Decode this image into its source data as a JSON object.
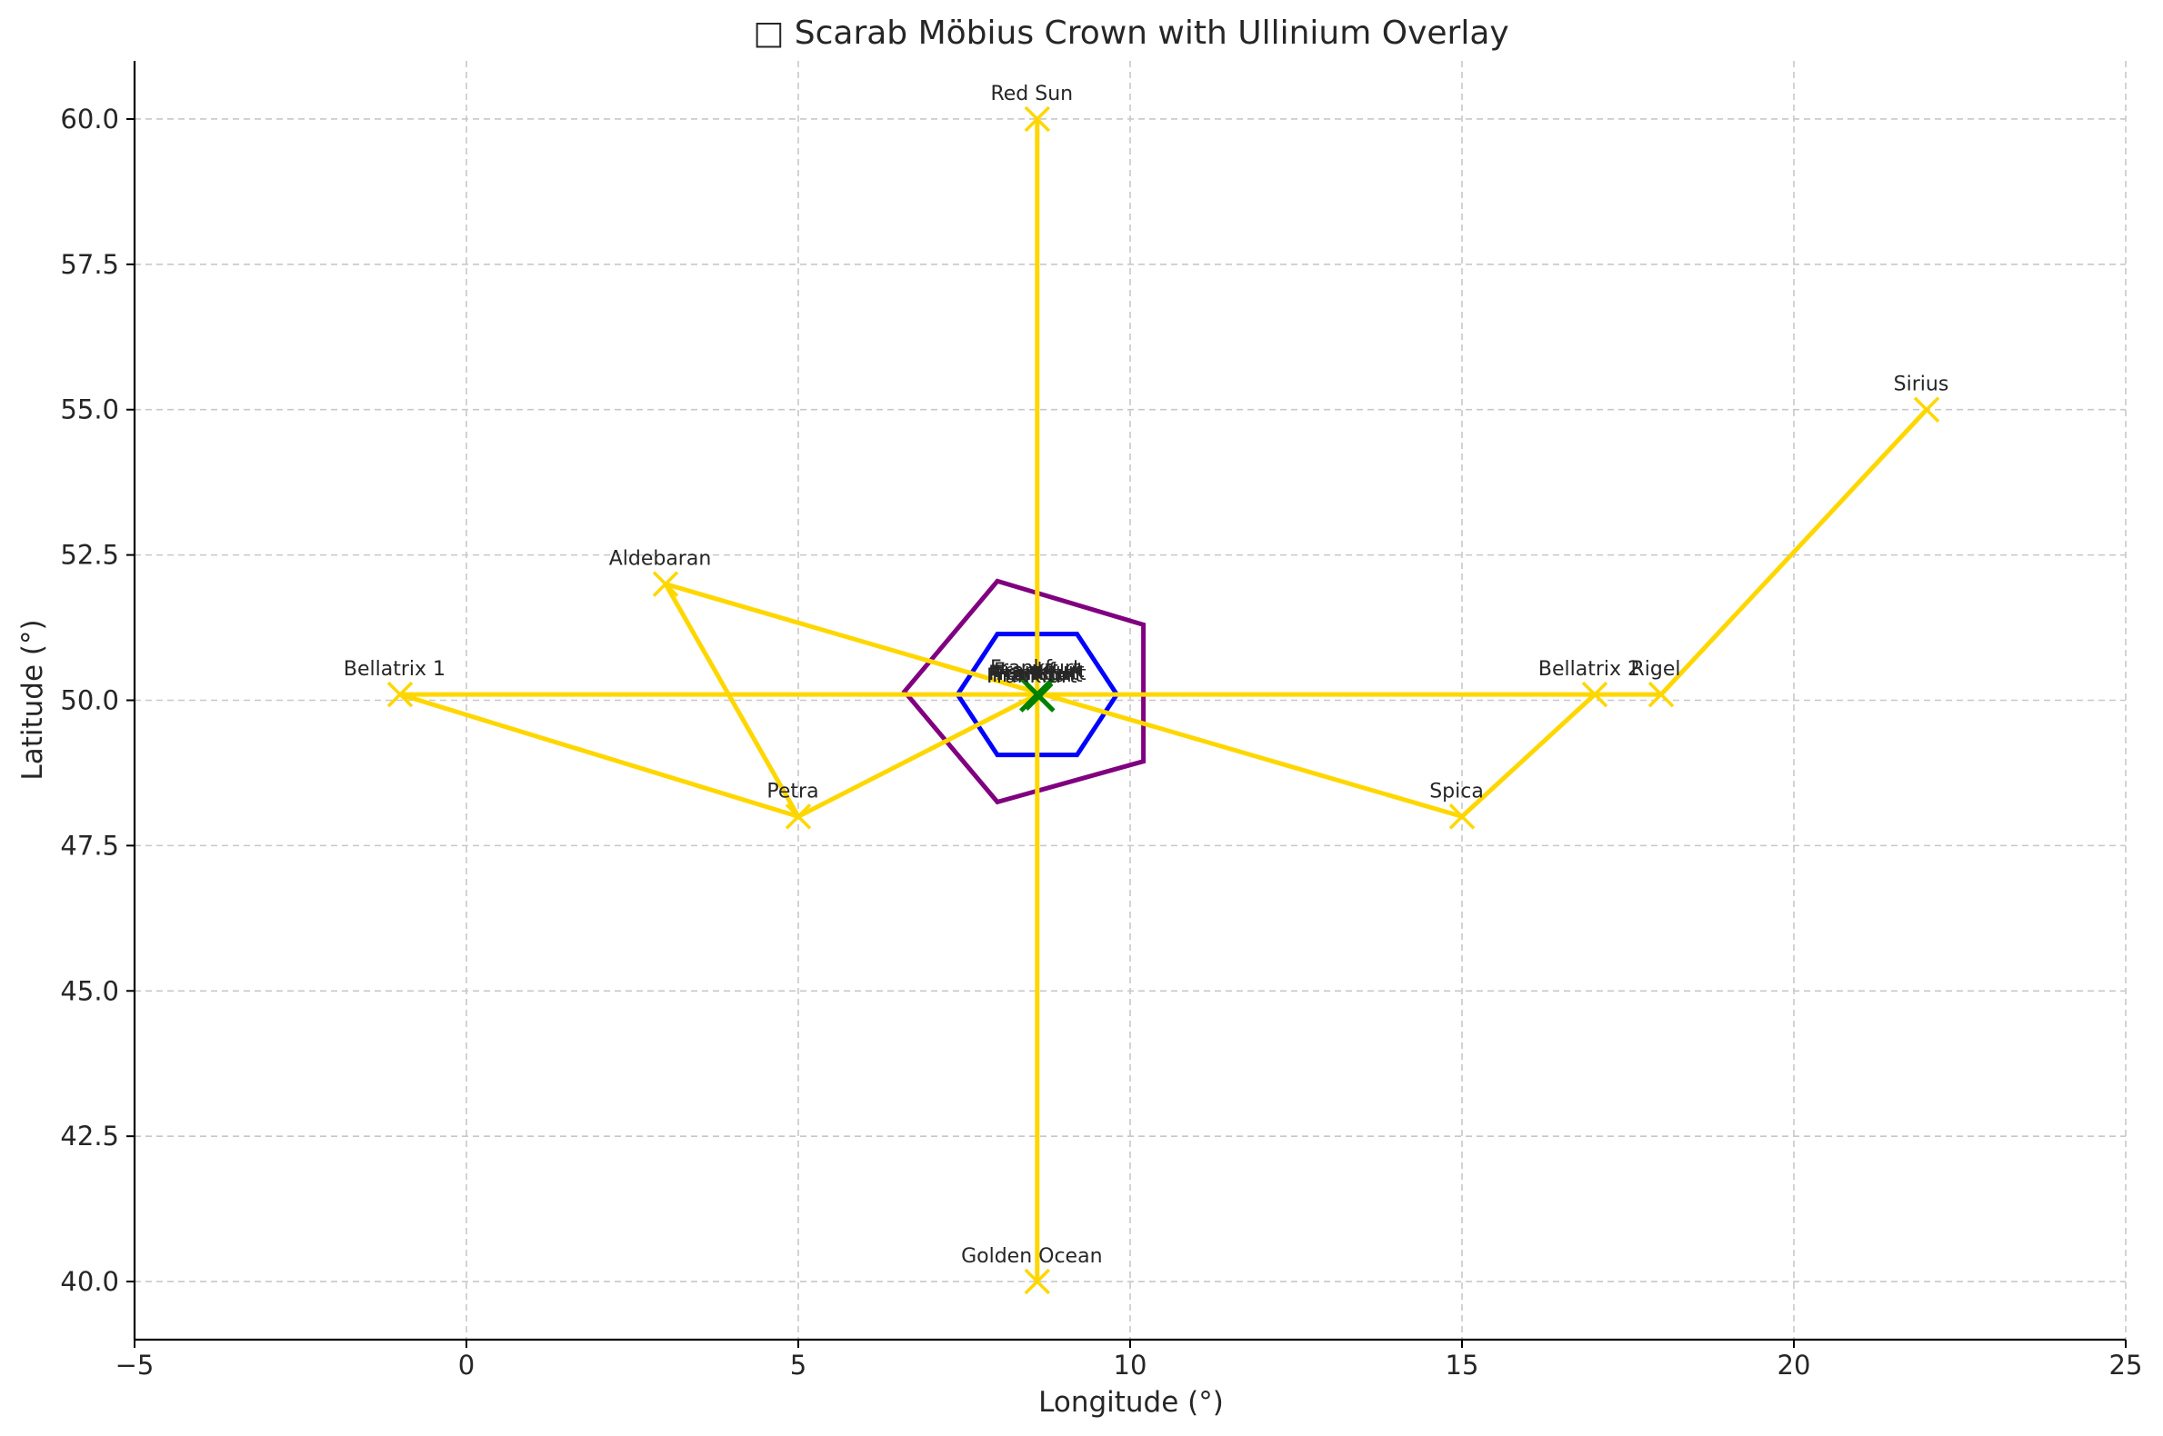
{
  "chart_data": {
    "type": "scatter",
    "title": "□ Scarab Möbius Crown with Ullinium Overlay",
    "xlabel": "Longitude (°)",
    "ylabel": "Latitude (°)",
    "xlim": [
      -5,
      25
    ],
    "ylim": [
      39,
      61
    ],
    "xticks": [
      -5,
      0,
      5,
      10,
      15,
      20,
      25
    ],
    "xtick_labels": [
      "−5",
      "0",
      "5",
      "10",
      "15",
      "20",
      "25"
    ],
    "yticks": [
      40,
      42.5,
      45,
      47.5,
      50,
      52.5,
      55,
      57.5,
      60
    ],
    "ytick_labels": [
      "40.0",
      "42.5",
      "45.0",
      "47.5",
      "50.0",
      "52.5",
      "55.0",
      "57.5",
      "60.0"
    ],
    "grid": true,
    "center": [
      8.6,
      50.1
    ],
    "points": [
      {
        "name": "Red Sun",
        "x": 8.6,
        "y": 60.0
      },
      {
        "name": "Golden Ocean",
        "x": 8.6,
        "y": 40.0
      },
      {
        "name": "Sirius",
        "x": 22.0,
        "y": 55.0
      },
      {
        "name": "Rigel",
        "x": 18.0,
        "y": 50.1
      },
      {
        "name": "Bellatrix 2",
        "x": 17.0,
        "y": 50.1
      },
      {
        "name": "Spica",
        "x": 15.0,
        "y": 48.0
      },
      {
        "name": "Aldebaran",
        "x": 3.0,
        "y": 52.0
      },
      {
        "name": "Bellatrix 1",
        "x": -1.0,
        "y": 50.1
      },
      {
        "name": "Petra",
        "x": 5.0,
        "y": 48.0
      }
    ],
    "center_labels": [
      "Frankfurt",
      "Frankfurt",
      "Frankfurt",
      "Frankfurt",
      "Frankfurt",
      "Frankfurt"
    ],
    "connections": [
      [
        [
          8.6,
          50.1
        ],
        [
          8.6,
          60.0
        ]
      ],
      [
        [
          8.6,
          50.1
        ],
        [
          8.6,
          40.0
        ]
      ],
      [
        [
          -1.0,
          50.1
        ],
        [
          18.0,
          50.1
        ]
      ],
      [
        [
          18.0,
          50.1
        ],
        [
          22.0,
          55.0
        ]
      ],
      [
        [
          3.0,
          52.0
        ],
        [
          15.0,
          48.0
        ]
      ],
      [
        [
          15.0,
          48.0
        ],
        [
          17.0,
          50.1
        ]
      ],
      [
        [
          3.0,
          52.0
        ],
        [
          5.0,
          48.0
        ]
      ],
      [
        [
          -1.0,
          50.1
        ],
        [
          5.0,
          48.0
        ]
      ],
      [
        [
          5.0,
          48.0
        ],
        [
          8.6,
          50.1
        ]
      ]
    ],
    "hexagon": [
      [
        9.8,
        50.1
      ],
      [
        9.2,
        51.14
      ],
      [
        8.0,
        51.14
      ],
      [
        7.4,
        50.1
      ],
      [
        8.0,
        49.06
      ],
      [
        9.2,
        49.06
      ]
    ],
    "pentagon": [
      [
        10.2,
        51.3
      ],
      [
        8.0,
        52.05
      ],
      [
        6.6,
        50.15
      ],
      [
        8.0,
        48.25
      ],
      [
        10.2,
        48.95
      ]
    ],
    "colors": {
      "connections": "#ffd700",
      "markers": "#ffd700",
      "hexagon": "#0000ff",
      "pentagon": "#800080",
      "center": "#008000",
      "grid": "#c8c8c8",
      "axis": "#000000"
    }
  }
}
